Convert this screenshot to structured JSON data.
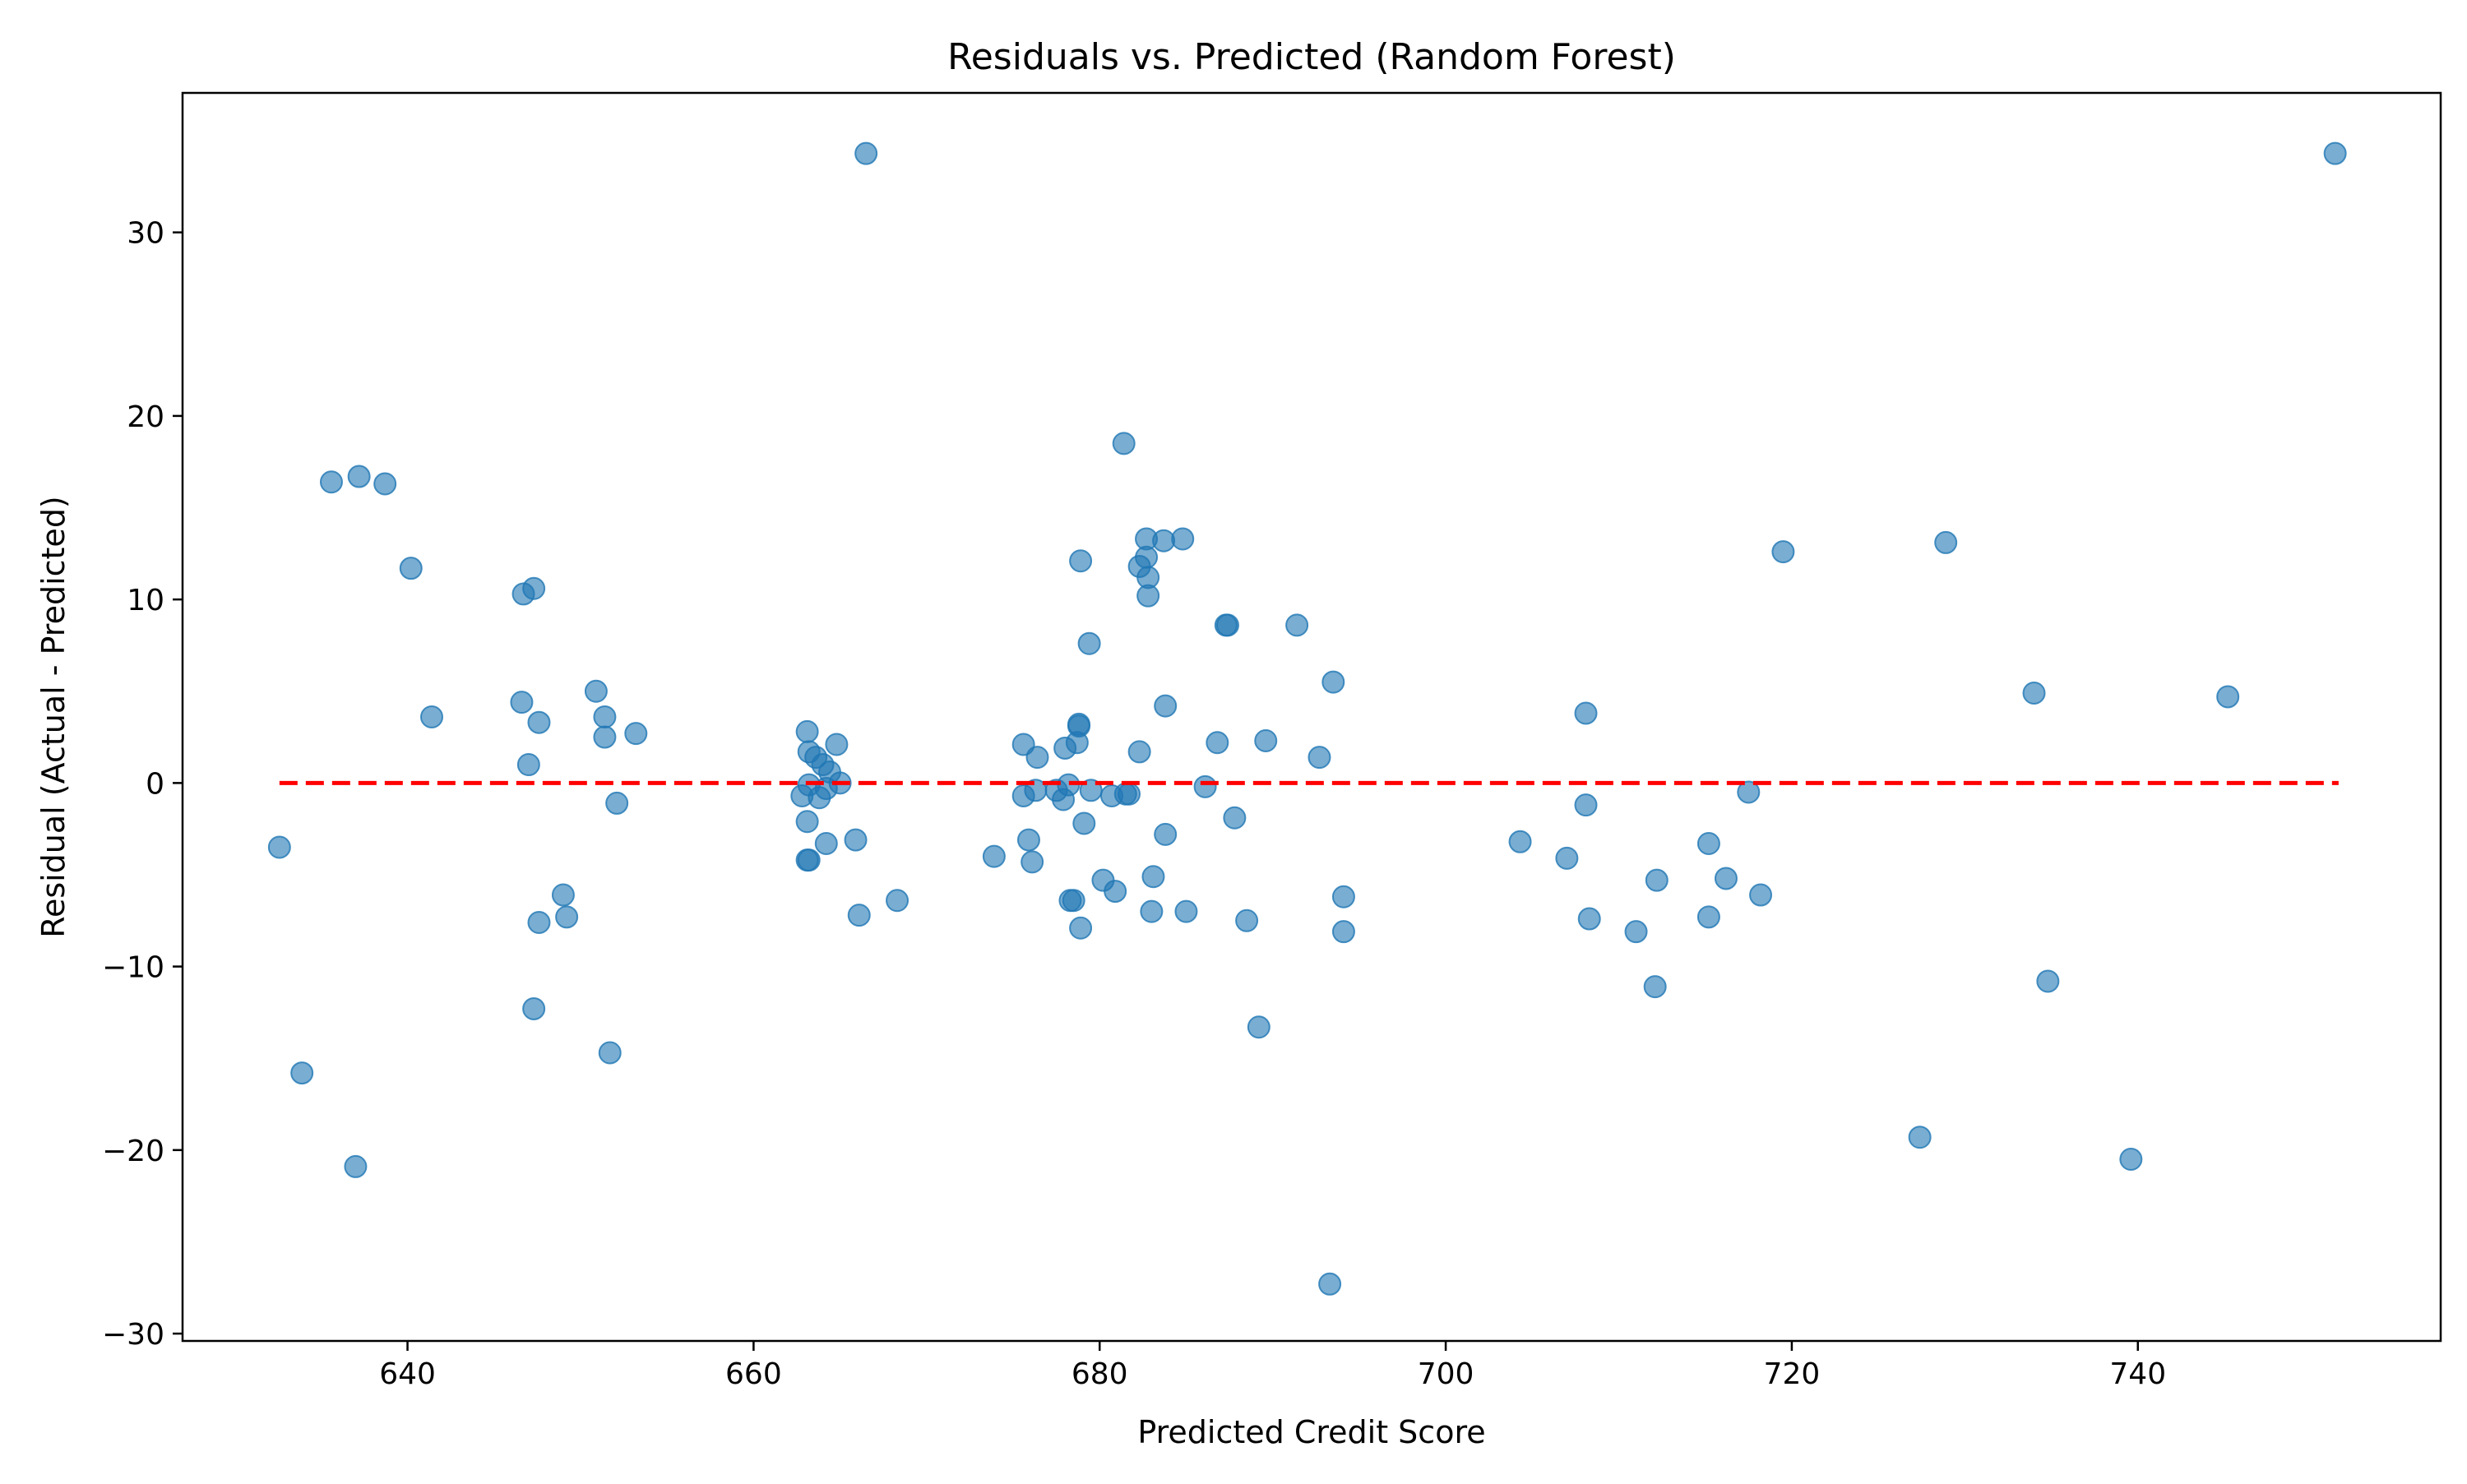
{
  "chart_data": {
    "type": "scatter",
    "title": "Residuals vs. Predicted (Random Forest)",
    "xlabel": "Predicted Credit Score",
    "ylabel": "Residual (Actual - Predicted)",
    "xlim": [
      627.0,
      757.5
    ],
    "ylim": [
      -30.4,
      37.6
    ],
    "xticks": [
      640,
      660,
      680,
      700,
      720,
      740
    ],
    "yticks": [
      -30,
      -20,
      -10,
      0,
      10,
      20,
      30
    ],
    "xtick_labels": [
      "640",
      "660",
      "680",
      "700",
      "720",
      "740"
    ],
    "ytick_labels": [
      "−30",
      "−20",
      "−10",
      "0",
      "10",
      "20",
      "30"
    ],
    "grid": false,
    "legend": false,
    "marker_color": "#1f77b4",
    "marker_alpha": 0.6,
    "reference_line": {
      "y": 0,
      "x_start": 632.6,
      "x_end": 751.6,
      "color": "#ff0000",
      "style": "dashed"
    },
    "points": [
      {
        "x": 632.6,
        "y": -3.5
      },
      {
        "x": 633.9,
        "y": -15.8
      },
      {
        "x": 635.6,
        "y": 16.4
      },
      {
        "x": 637.0,
        "y": -20.9
      },
      {
        "x": 637.2,
        "y": 16.7
      },
      {
        "x": 638.7,
        "y": 16.3
      },
      {
        "x": 640.2,
        "y": 11.7
      },
      {
        "x": 641.4,
        "y": 3.6
      },
      {
        "x": 646.6,
        "y": 4.4
      },
      {
        "x": 646.7,
        "y": 10.3
      },
      {
        "x": 647.0,
        "y": 1.0
      },
      {
        "x": 647.3,
        "y": 10.6
      },
      {
        "x": 647.3,
        "y": -12.3
      },
      {
        "x": 647.6,
        "y": 3.3
      },
      {
        "x": 647.6,
        "y": -7.6
      },
      {
        "x": 649.0,
        "y": -6.1
      },
      {
        "x": 649.2,
        "y": -7.3
      },
      {
        "x": 650.9,
        "y": 5.0
      },
      {
        "x": 651.4,
        "y": 3.6
      },
      {
        "x": 651.4,
        "y": 2.5
      },
      {
        "x": 651.7,
        "y": -14.7
      },
      {
        "x": 652.1,
        "y": -1.1
      },
      {
        "x": 653.2,
        "y": 2.7
      },
      {
        "x": 662.8,
        "y": -0.7
      },
      {
        "x": 663.1,
        "y": -2.1
      },
      {
        "x": 663.1,
        "y": 2.8
      },
      {
        "x": 663.1,
        "y": -4.2
      },
      {
        "x": 663.2,
        "y": -4.2
      },
      {
        "x": 663.2,
        "y": 1.7
      },
      {
        "x": 663.2,
        "y": -0.1
      },
      {
        "x": 663.6,
        "y": 1.4
      },
      {
        "x": 663.8,
        "y": -0.8
      },
      {
        "x": 664.0,
        "y": 1.0
      },
      {
        "x": 664.2,
        "y": -0.3
      },
      {
        "x": 664.2,
        "y": -3.3
      },
      {
        "x": 664.4,
        "y": 0.6
      },
      {
        "x": 664.8,
        "y": 2.1
      },
      {
        "x": 665.0,
        "y": 0.0
      },
      {
        "x": 665.9,
        "y": -3.1
      },
      {
        "x": 666.1,
        "y": -7.2
      },
      {
        "x": 666.5,
        "y": 34.3
      },
      {
        "x": 668.3,
        "y": -6.4
      },
      {
        "x": 673.9,
        "y": -4.0
      },
      {
        "x": 675.6,
        "y": 2.1
      },
      {
        "x": 675.6,
        "y": -0.7
      },
      {
        "x": 675.9,
        "y": -3.1
      },
      {
        "x": 676.1,
        "y": -4.3
      },
      {
        "x": 676.3,
        "y": -0.4
      },
      {
        "x": 676.4,
        "y": 1.4
      },
      {
        "x": 677.5,
        "y": -0.4
      },
      {
        "x": 677.9,
        "y": -0.9
      },
      {
        "x": 678.0,
        "y": 1.9
      },
      {
        "x": 678.2,
        "y": -0.1
      },
      {
        "x": 678.3,
        "y": -6.4
      },
      {
        "x": 678.5,
        "y": -6.4
      },
      {
        "x": 678.7,
        "y": 2.2
      },
      {
        "x": 678.8,
        "y": 3.2
      },
      {
        "x": 678.8,
        "y": 3.1
      },
      {
        "x": 678.9,
        "y": 12.1
      },
      {
        "x": 678.9,
        "y": -7.9
      },
      {
        "x": 679.1,
        "y": -2.2
      },
      {
        "x": 679.4,
        "y": 7.6
      },
      {
        "x": 679.5,
        "y": -0.4
      },
      {
        "x": 680.2,
        "y": -5.3
      },
      {
        "x": 680.7,
        "y": -0.7
      },
      {
        "x": 680.9,
        "y": -5.9
      },
      {
        "x": 681.4,
        "y": 18.5
      },
      {
        "x": 681.5,
        "y": -0.6
      },
      {
        "x": 681.7,
        "y": -0.6
      },
      {
        "x": 682.3,
        "y": 11.8
      },
      {
        "x": 682.3,
        "y": 1.7
      },
      {
        "x": 682.7,
        "y": 12.3
      },
      {
        "x": 682.7,
        "y": 13.3
      },
      {
        "x": 682.8,
        "y": 11.2
      },
      {
        "x": 682.8,
        "y": 10.2
      },
      {
        "x": 683.0,
        "y": -7.0
      },
      {
        "x": 683.1,
        "y": -5.1
      },
      {
        "x": 683.7,
        "y": 13.2
      },
      {
        "x": 683.8,
        "y": 4.2
      },
      {
        "x": 683.8,
        "y": -2.8
      },
      {
        "x": 684.8,
        "y": 13.3
      },
      {
        "x": 685.0,
        "y": -7.0
      },
      {
        "x": 686.1,
        "y": -0.2
      },
      {
        "x": 686.8,
        "y": 2.2
      },
      {
        "x": 687.3,
        "y": 8.6
      },
      {
        "x": 687.4,
        "y": 8.6
      },
      {
        "x": 687.8,
        "y": -1.9
      },
      {
        "x": 688.5,
        "y": -7.5
      },
      {
        "x": 689.2,
        "y": -13.3
      },
      {
        "x": 689.6,
        "y": 2.3
      },
      {
        "x": 691.4,
        "y": 8.6
      },
      {
        "x": 692.7,
        "y": 1.4
      },
      {
        "x": 693.3,
        "y": -27.3
      },
      {
        "x": 693.5,
        "y": 5.5
      },
      {
        "x": 694.1,
        "y": -6.2
      },
      {
        "x": 694.1,
        "y": -8.1
      },
      {
        "x": 704.3,
        "y": -3.2
      },
      {
        "x": 707.0,
        "y": -4.1
      },
      {
        "x": 708.1,
        "y": 3.8
      },
      {
        "x": 708.1,
        "y": -1.2
      },
      {
        "x": 708.3,
        "y": -7.4
      },
      {
        "x": 711.0,
        "y": -8.1
      },
      {
        "x": 712.1,
        "y": -11.1
      },
      {
        "x": 712.2,
        "y": -5.3
      },
      {
        "x": 715.2,
        "y": -3.3
      },
      {
        "x": 715.2,
        "y": -7.3
      },
      {
        "x": 716.2,
        "y": -5.2
      },
      {
        "x": 717.5,
        "y": -0.5
      },
      {
        "x": 718.2,
        "y": -6.1
      },
      {
        "x": 719.5,
        "y": 12.6
      },
      {
        "x": 727.4,
        "y": -19.3
      },
      {
        "x": 728.9,
        "y": 13.1
      },
      {
        "x": 734.0,
        "y": 4.9
      },
      {
        "x": 734.8,
        "y": -10.8
      },
      {
        "x": 739.6,
        "y": -20.5
      },
      {
        "x": 745.2,
        "y": 4.7
      },
      {
        "x": 751.4,
        "y": 34.3
      }
    ]
  }
}
